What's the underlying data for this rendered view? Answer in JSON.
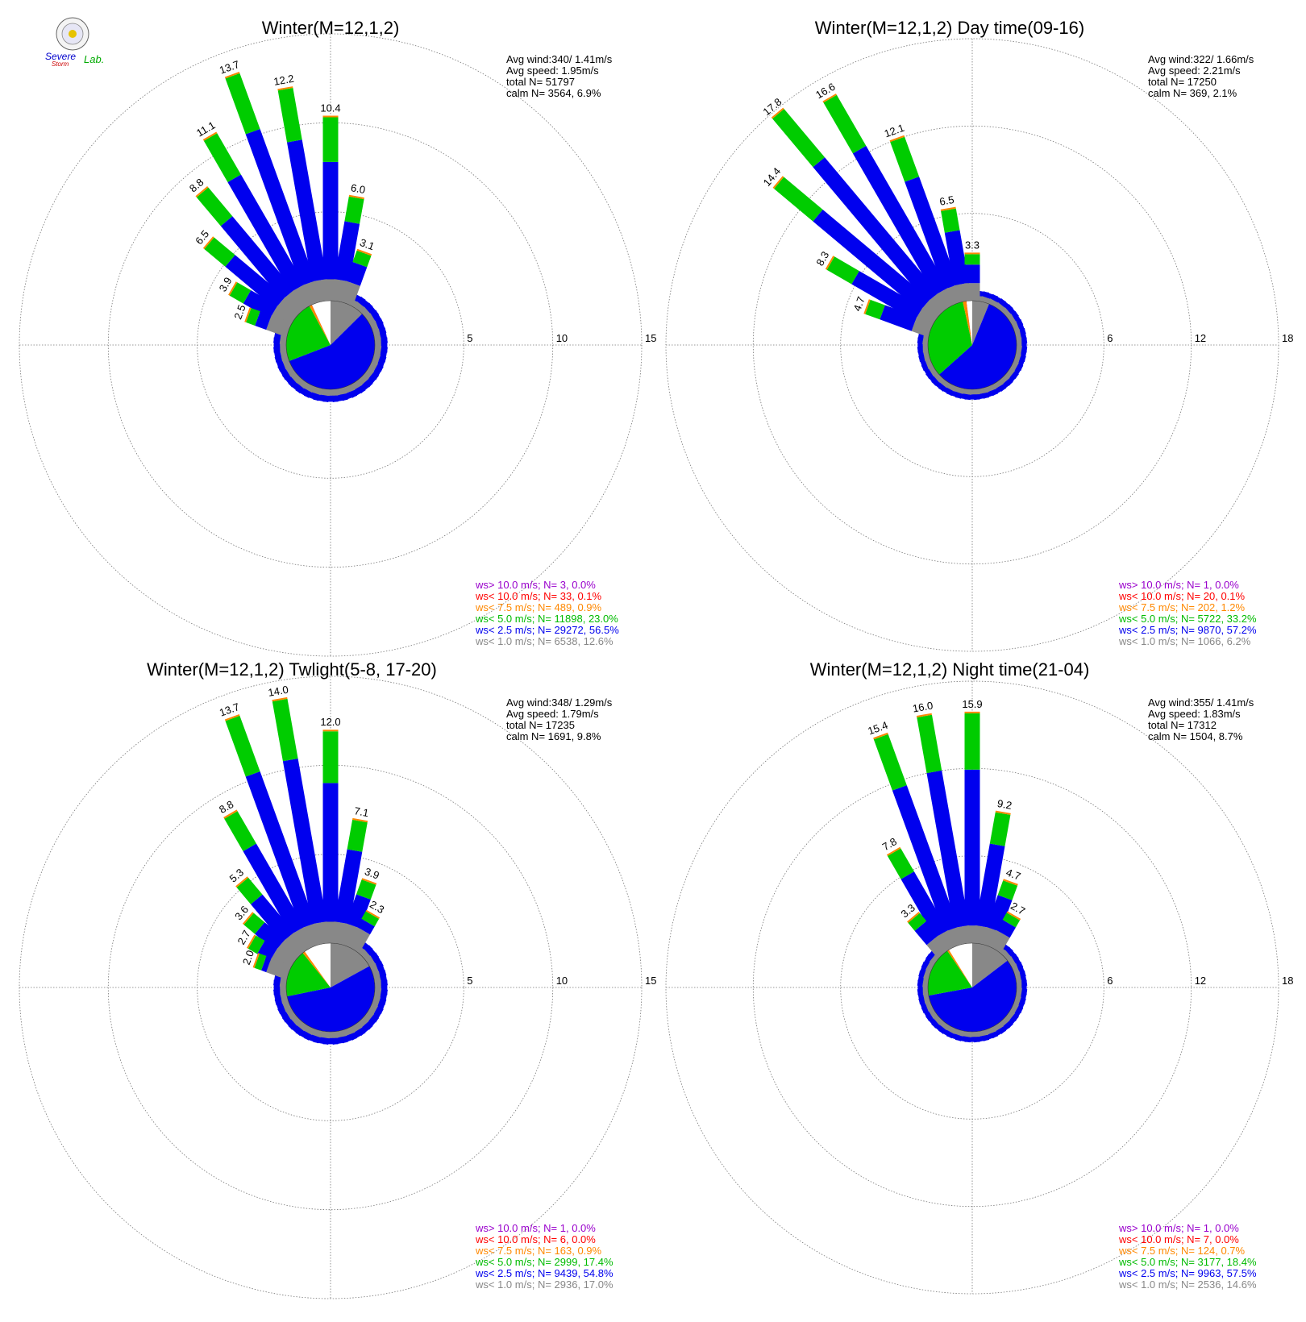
{
  "panels": [
    {
      "title": "Winter(M=12,1,2)",
      "stats": [
        "Avg wind:340/ 1.41m/s",
        "Avg speed: 1.95m/s",
        "total N=      51797",
        "calm N=   3564,   6.9%"
      ],
      "legend": [
        {
          "text": "ws> 10.0 m/s; N=      3,  0.0%",
          "color": "#9900cc"
        },
        {
          "text": "ws< 10.0 m/s; N=     33,  0.1%",
          "color": "#ff0000"
        },
        {
          "text": "ws<  7.5 m/s; N=    489,  0.9%",
          "color": "#ff8800"
        },
        {
          "text": "ws<  5.0 m/s; N= 11898, 23.0%",
          "color": "#00bb00"
        },
        {
          "text": "ws<  2.5 m/s; N= 29272, 56.5%",
          "color": "#0000ee"
        },
        {
          "text": "ws<  1.0 m/s; N=   6538, 12.6%",
          "color": "#888888"
        }
      ]
    },
    {
      "title": "Winter(M=12,1,2) Day time(09-16)",
      "stats": [
        "Avg wind:322/ 1.66m/s",
        "Avg speed: 2.21m/s",
        "total N=      17250",
        "calm N=    369,   2.1%"
      ],
      "legend": [
        {
          "text": "ws> 10.0 m/s; N=      1,  0.0%",
          "color": "#9900cc"
        },
        {
          "text": "ws< 10.0 m/s; N=     20,  0.1%",
          "color": "#ff0000"
        },
        {
          "text": "ws<  7.5 m/s; N=    202,  1.2%",
          "color": "#ff8800"
        },
        {
          "text": "ws<  5.0 m/s; N=   5722, 33.2%",
          "color": "#00bb00"
        },
        {
          "text": "ws<  2.5 m/s; N=   9870, 57.2%",
          "color": "#0000ee"
        },
        {
          "text": "ws<  1.0 m/s; N=   1066,  6.2%",
          "color": "#888888"
        }
      ]
    },
    {
      "title": "Winter(M=12,1,2) Twlight(5-8, 17-20)",
      "stats": [
        "Avg wind:348/ 1.29m/s",
        "Avg speed: 1.79m/s",
        "total N=      17235",
        "calm N=   1691,   9.8%"
      ],
      "legend": [
        {
          "text": "ws> 10.0 m/s; N=      1,  0.0%",
          "color": "#9900cc"
        },
        {
          "text": "ws< 10.0 m/s; N=      6,  0.0%",
          "color": "#ff0000"
        },
        {
          "text": "ws<  7.5 m/s; N=    163,  0.9%",
          "color": "#ff8800"
        },
        {
          "text": "ws<  5.0 m/s; N=   2999, 17.4%",
          "color": "#00bb00"
        },
        {
          "text": "ws<  2.5 m/s; N=   9439, 54.8%",
          "color": "#0000ee"
        },
        {
          "text": "ws<  1.0 m/s; N=   2936, 17.0%",
          "color": "#888888"
        }
      ]
    },
    {
      "title": "Winter(M=12,1,2) Night time(21-04)",
      "stats": [
        "Avg wind:355/ 1.41m/s",
        "Avg speed: 1.83m/s",
        "total N=      17312",
        "calm N=   1504,   8.7%"
      ],
      "legend": [
        {
          "text": "ws> 10.0 m/s; N=      1,  0.0%",
          "color": "#9900cc"
        },
        {
          "text": "ws< 10.0 m/s; N=      7,  0.0%",
          "color": "#ff0000"
        },
        {
          "text": "ws<  7.5 m/s; N=    124,  0.7%",
          "color": "#ff8800"
        },
        {
          "text": "ws<  5.0 m/s; N=   3177, 18.4%",
          "color": "#00bb00"
        },
        {
          "text": "ws<  2.5 m/s; N=   9963, 57.5%",
          "color": "#0000ee"
        },
        {
          "text": "ws<  1.0 m/s; N=   2536, 14.6%",
          "color": "#888888"
        }
      ]
    }
  ],
  "logo": {
    "text_severe": "Severe",
    "text_storm": "Storm",
    "text_lab": "Lab."
  },
  "chart_data": [
    {
      "type": "wind-rose",
      "title": "Winter(M=12,1,2)",
      "rmax": 15,
      "ring_ticks": [
        5,
        10,
        15
      ],
      "sectors": [
        {
          "dir": 360,
          "total": 10.4,
          "labelled": true
        },
        {
          "dir": 10,
          "total": 6.0,
          "labelled": true
        },
        {
          "dir": 20,
          "total": 3.1,
          "labelled": true
        },
        {
          "dir": 350,
          "total": 12.2,
          "labelled": true
        },
        {
          "dir": 340,
          "total": 13.7,
          "labelled": true
        },
        {
          "dir": 330,
          "total": 11.1,
          "labelled": true
        },
        {
          "dir": 320,
          "total": 8.8,
          "labelled": true
        },
        {
          "dir": 310,
          "total": 6.5,
          "labelled": true
        },
        {
          "dir": 300,
          "total": 3.9,
          "labelled": true
        },
        {
          "dir": 290,
          "total": 2.5,
          "labelled": true
        }
      ],
      "calm_pie": {
        "gray": 12.6,
        "blue": 56.5,
        "green": 23.0,
        "orange": 0.9,
        "red": 0.1
      }
    },
    {
      "type": "wind-rose",
      "title": "Winter(M=12,1,2) Day time(09-16)",
      "rmax": 18,
      "ring_ticks": [
        6,
        12,
        18
      ],
      "sectors": [
        {
          "dir": 340,
          "total": 12.1,
          "labelled": true
        },
        {
          "dir": 330,
          "total": 16.6,
          "labelled": true
        },
        {
          "dir": 320,
          "total": 17.8,
          "labelled": true
        },
        {
          "dir": 310,
          "total": 14.4,
          "labelled": true
        },
        {
          "dir": 300,
          "total": 8.3,
          "labelled": true
        },
        {
          "dir": 290,
          "total": 4.7,
          "labelled": true
        },
        {
          "dir": 350,
          "total": 6.5,
          "labelled": true
        },
        {
          "dir": 360,
          "total": 3.3,
          "labelled": true
        }
      ],
      "calm_pie": {
        "gray": 6.2,
        "blue": 57.2,
        "green": 33.2,
        "orange": 1.2,
        "red": 0.1
      }
    },
    {
      "type": "wind-rose",
      "title": "Winter(M=12,1,2) Twlight(5-8, 17-20)",
      "rmax": 15,
      "ring_ticks": [
        5,
        10,
        15
      ],
      "sectors": [
        {
          "dir": 360,
          "total": 12.0,
          "labelled": true
        },
        {
          "dir": 350,
          "total": 14.0,
          "labelled": true
        },
        {
          "dir": 340,
          "total": 13.7,
          "labelled": true
        },
        {
          "dir": 330,
          "total": 8.8,
          "labelled": true
        },
        {
          "dir": 10,
          "total": 7.1,
          "labelled": true
        },
        {
          "dir": 20,
          "total": 3.9,
          "labelled": true
        },
        {
          "dir": 30,
          "total": 2.3,
          "labelled": true
        },
        {
          "dir": 320,
          "total": 5.3,
          "labelled": true
        },
        {
          "dir": 310,
          "total": 3.6,
          "labelled": true
        },
        {
          "dir": 300,
          "total": 2.7,
          "labelled": true
        },
        {
          "dir": 290,
          "total": 2.0,
          "labelled": true
        }
      ],
      "calm_pie": {
        "gray": 17.0,
        "blue": 54.8,
        "green": 17.4,
        "orange": 0.9,
        "red": 0.0
      }
    },
    {
      "type": "wind-rose",
      "title": "Winter(M=12,1,2) Night time(21-04)",
      "rmax": 18,
      "ring_ticks": [
        6,
        12,
        18
      ],
      "sectors": [
        {
          "dir": 360,
          "total": 15.9,
          "labelled": true
        },
        {
          "dir": 350,
          "total": 16.0,
          "labelled": true
        },
        {
          "dir": 340,
          "total": 15.4,
          "labelled": true
        },
        {
          "dir": 330,
          "total": 7.8,
          "labelled": true
        },
        {
          "dir": 320,
          "total": 3.3,
          "labelled": true
        },
        {
          "dir": 10,
          "total": 9.2,
          "labelled": true
        },
        {
          "dir": 20,
          "total": 4.7,
          "labelled": true
        },
        {
          "dir": 30,
          "total": 2.7,
          "labelled": true
        }
      ],
      "calm_pie": {
        "gray": 14.6,
        "blue": 57.5,
        "green": 18.4,
        "orange": 0.7,
        "red": 0.0
      }
    }
  ]
}
